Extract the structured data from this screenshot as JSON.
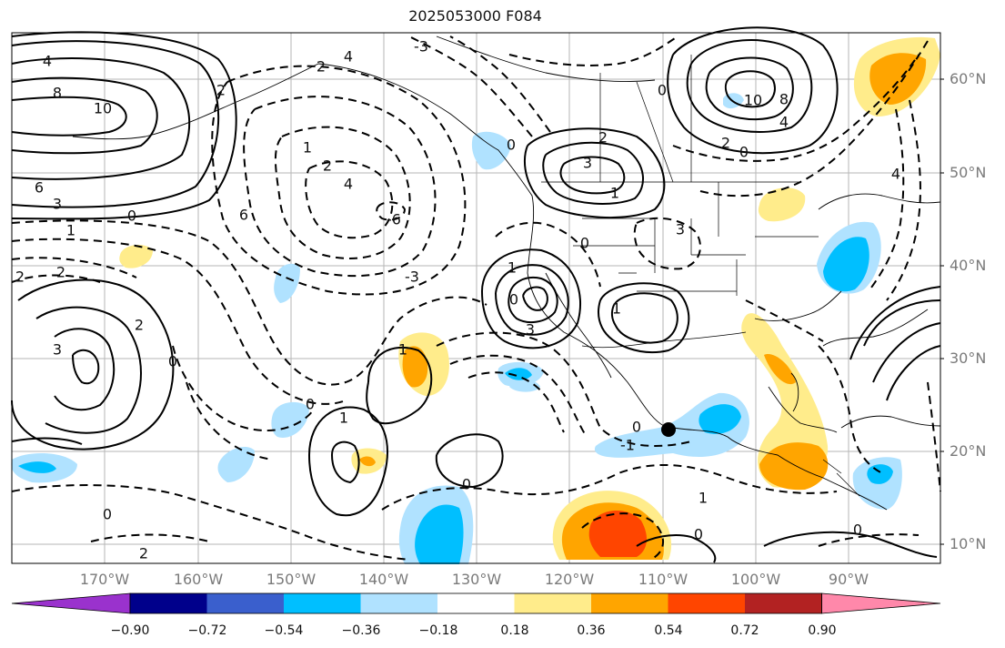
{
  "title": "2025053000 F084",
  "lat_labels": [
    "60°N",
    "50°N",
    "40°N",
    "30°N",
    "20°N",
    "10°N"
  ],
  "lon_labels": [
    "170°W",
    "160°W",
    "150°W",
    "140°W",
    "130°W",
    "120°W",
    "110°W",
    "100°W",
    "90°W"
  ],
  "colorbar": {
    "tick_labels": [
      "−0.90",
      "−0.72",
      "−0.54",
      "−0.36",
      "−0.18",
      "0.18",
      "0.36",
      "0.54",
      "0.72",
      "0.90"
    ],
    "colors": [
      "#9a32cd",
      "#00008b",
      "#3a5fcd",
      "#00bfff",
      "#b0e2ff",
      "#ffffff",
      "#ffec8b",
      "#ffa500",
      "#ff4500",
      "#b22222",
      "#ff88aa"
    ]
  },
  "contour_labels": [
    "4",
    "8",
    "10",
    "6",
    "3",
    "0",
    "1",
    "2",
    "2",
    "-3",
    "2",
    "4",
    "2",
    "1",
    "2",
    "6",
    "4",
    "-6",
    "2",
    "-3",
    "1",
    "3",
    "3",
    "10",
    "8",
    "4",
    "2",
    "0",
    "4",
    "2",
    "0",
    "1",
    "1",
    "3",
    "3",
    "1",
    "0",
    "1",
    "0",
    "0",
    "2",
    "1",
    "0",
    "0",
    "0",
    "0",
    "0",
    "0",
    "0",
    "-1"
  ]
}
